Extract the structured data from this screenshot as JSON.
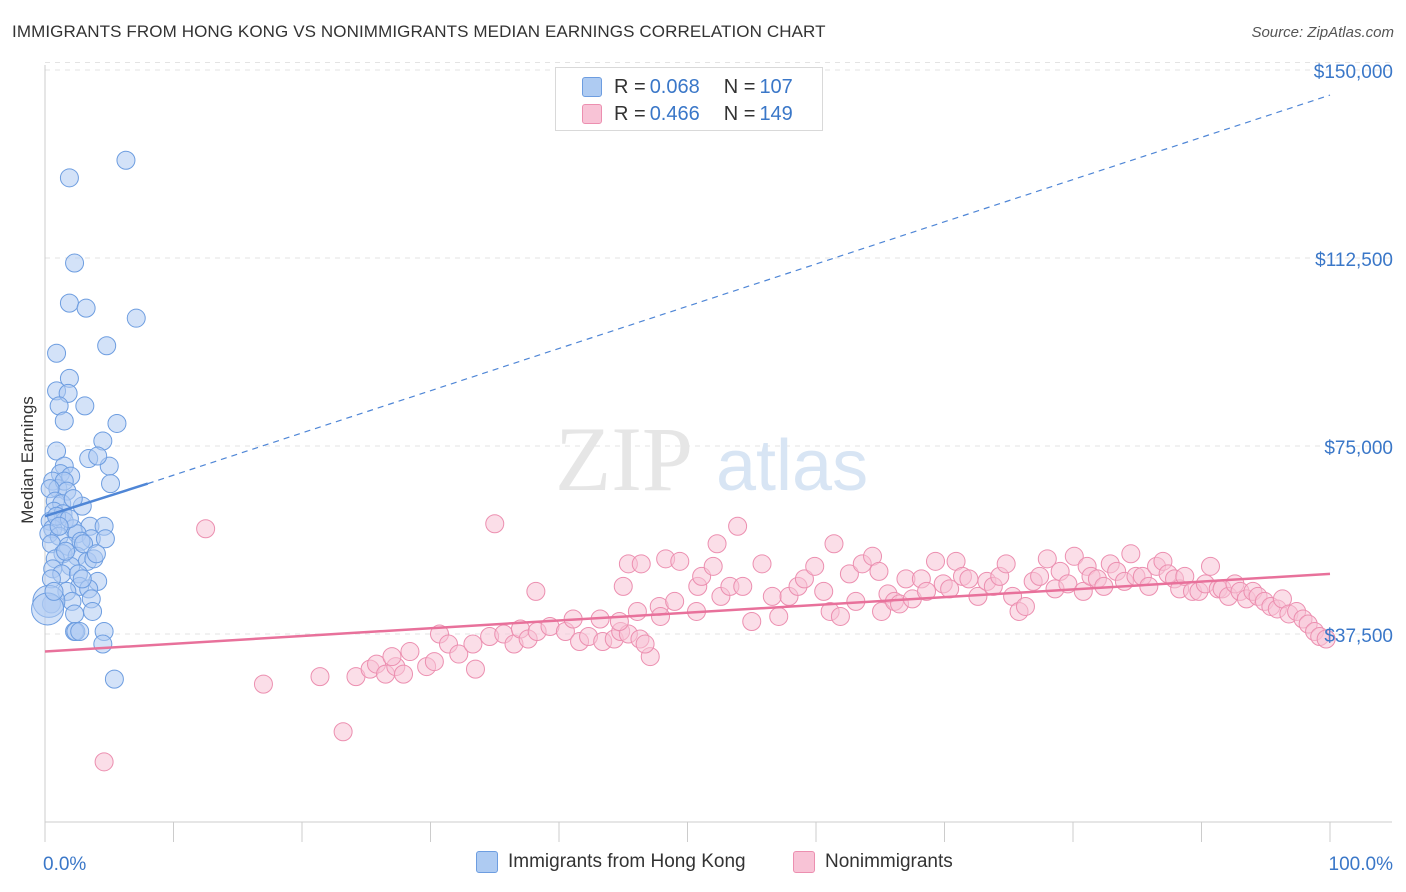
{
  "title": "IMMIGRANTS FROM HONG KONG VS NONIMMIGRANTS MEDIAN EARNINGS CORRELATION CHART",
  "source": "Source: ZipAtlas.com",
  "watermark": {
    "zip": "ZIP",
    "atlas": "atlas"
  },
  "legend": {
    "r_label": "R =",
    "n_label": "N =",
    "rows": [
      {
        "r": "0.068",
        "n": "107",
        "fill": "#aecbf2",
        "stroke": "#6d9de0"
      },
      {
        "r": "0.466",
        "n": "149",
        "fill": "#f8c3d6",
        "stroke": "#ec8fb0"
      }
    ]
  },
  "chart_data": {
    "type": "scatter",
    "title": "IMMIGRANTS FROM HONG KONG VS NONIMMIGRANTS MEDIAN EARNINGS CORRELATION CHART",
    "ylabel": "Median Earnings",
    "xlabel": "",
    "xlim": [
      0,
      100
    ],
    "ylim": [
      0,
      153000
    ],
    "x_tick_labels": [
      "0.0%",
      "100.0%"
    ],
    "y_ticks": [
      37500,
      75000,
      112500,
      150000
    ],
    "y_tick_labels": [
      "$37,500",
      "$75,000",
      "$112,500",
      "$150,000"
    ],
    "grid": "horizontal dashed",
    "legend_position": "top-center and bottom",
    "colors": {
      "blue": "#4f86d6",
      "blue_fill": "#aecbf2",
      "pink": "#e8719b",
      "pink_fill": "#f8c3d6",
      "axis_text": "#3a77c8"
    },
    "series": [
      {
        "name": "Immigrants from Hong Kong",
        "r": 0.068,
        "n": 107,
        "trend": {
          "x0": 0,
          "y0": 61000,
          "x1_solid": 8,
          "y1_solid": 67500,
          "x1": 100,
          "y1": 145000
        },
        "points": [
          [
            6.3,
            132000
          ],
          [
            1.9,
            128500
          ],
          [
            2.3,
            111500
          ],
          [
            1.9,
            103500
          ],
          [
            3.2,
            102500
          ],
          [
            7.1,
            100500
          ],
          [
            0.9,
            93500
          ],
          [
            4.8,
            95000
          ],
          [
            1.9,
            88500
          ],
          [
            0.9,
            86000
          ],
          [
            1.8,
            85500
          ],
          [
            1.1,
            83000
          ],
          [
            3.1,
            83000
          ],
          [
            1.5,
            80000
          ],
          [
            5.6,
            79500
          ],
          [
            4.5,
            76000
          ],
          [
            0.9,
            74000
          ],
          [
            3.4,
            72500
          ],
          [
            1.5,
            71000
          ],
          [
            5.0,
            71000
          ],
          [
            4.1,
            73000
          ],
          [
            1.2,
            69500
          ],
          [
            0.6,
            68000
          ],
          [
            2.0,
            69000
          ],
          [
            1.0,
            66500
          ],
          [
            1.5,
            68000
          ],
          [
            1.7,
            66000
          ],
          [
            5.1,
            67500
          ],
          [
            0.4,
            66500
          ],
          [
            0.8,
            64000
          ],
          [
            1.3,
            63500
          ],
          [
            2.9,
            63000
          ],
          [
            0.7,
            62000
          ],
          [
            1.4,
            61500
          ],
          [
            0.4,
            60000
          ],
          [
            1.5,
            60000
          ],
          [
            0.6,
            58500
          ],
          [
            2.2,
            58500
          ],
          [
            3.5,
            59000
          ],
          [
            4.6,
            59000
          ],
          [
            0.3,
            57500
          ],
          [
            1.1,
            57000
          ],
          [
            2.5,
            57500
          ],
          [
            3.6,
            56500
          ],
          [
            4.7,
            56500
          ],
          [
            0.5,
            55500
          ],
          [
            1.8,
            55000
          ],
          [
            2.8,
            56000
          ],
          [
            1.4,
            53500
          ],
          [
            2.5,
            53000
          ],
          [
            3.3,
            52000
          ],
          [
            0.8,
            52500
          ],
          [
            2.0,
            51000
          ],
          [
            3.8,
            52500
          ],
          [
            0.6,
            50500
          ],
          [
            1.3,
            49500
          ],
          [
            2.6,
            49500
          ],
          [
            4.1,
            48000
          ],
          [
            0.5,
            48500
          ],
          [
            2.7,
            47000
          ],
          [
            3.4,
            46500
          ],
          [
            1.7,
            46000
          ],
          [
            3.6,
            44500
          ],
          [
            2.1,
            44000
          ],
          [
            2.3,
            41500
          ],
          [
            3.7,
            42000
          ],
          [
            0.5,
            43500
          ],
          [
            2.3,
            38000
          ],
          [
            2.4,
            38000
          ],
          [
            2.7,
            38000
          ],
          [
            4.6,
            38000
          ],
          [
            4.5,
            35500
          ],
          [
            5.4,
            28500
          ],
          [
            0.3,
            44000
          ],
          [
            0.2,
            42500
          ],
          [
            1.6,
            54000
          ],
          [
            3.0,
            55500
          ],
          [
            0.9,
            61000
          ],
          [
            2.2,
            64500
          ],
          [
            1.9,
            60500
          ],
          [
            1.1,
            59000
          ],
          [
            4.0,
            53500
          ],
          [
            2.9,
            48500
          ],
          [
            0.7,
            46000
          ]
        ]
      },
      {
        "name": "Nonimmigrants",
        "r": 0.466,
        "n": 149,
        "trend": {
          "x0": 0,
          "y0": 34000,
          "x1": 100,
          "y1": 49500
        },
        "points": [
          [
            12.5,
            58500
          ],
          [
            4.6,
            12000
          ],
          [
            17.0,
            27500
          ],
          [
            21.4,
            29000
          ],
          [
            23.2,
            18000
          ],
          [
            24.2,
            29000
          ],
          [
            25.3,
            30500
          ],
          [
            25.8,
            31500
          ],
          [
            26.5,
            29500
          ],
          [
            27.3,
            31000
          ],
          [
            27.9,
            29500
          ],
          [
            27.0,
            33000
          ],
          [
            28.4,
            34000
          ],
          [
            29.7,
            31000
          ],
          [
            30.3,
            32000
          ],
          [
            30.7,
            37500
          ],
          [
            31.4,
            35500
          ],
          [
            32.2,
            33500
          ],
          [
            33.3,
            35500
          ],
          [
            34.6,
            37000
          ],
          [
            35.7,
            37500
          ],
          [
            36.5,
            35500
          ],
          [
            37.0,
            38500
          ],
          [
            37.6,
            36500
          ],
          [
            38.3,
            38000
          ],
          [
            39.3,
            39000
          ],
          [
            40.5,
            38000
          ],
          [
            41.6,
            36000
          ],
          [
            42.3,
            37000
          ],
          [
            43.4,
            36000
          ],
          [
            44.3,
            36500
          ],
          [
            44.8,
            38000
          ],
          [
            45.4,
            37500
          ],
          [
            46.3,
            36500
          ],
          [
            47.1,
            33000
          ],
          [
            46.7,
            35500
          ],
          [
            35.0,
            59500
          ],
          [
            38.2,
            46000
          ],
          [
            43.2,
            40500
          ],
          [
            44.7,
            40000
          ],
          [
            45.4,
            51500
          ],
          [
            45.0,
            47000
          ],
          [
            46.1,
            42000
          ],
          [
            46.4,
            51500
          ],
          [
            47.8,
            43000
          ],
          [
            48.3,
            52500
          ],
          [
            47.9,
            41000
          ],
          [
            49.0,
            44000
          ],
          [
            49.4,
            52000
          ],
          [
            50.7,
            42000
          ],
          [
            50.8,
            47000
          ],
          [
            51.1,
            49000
          ],
          [
            52.0,
            51000
          ],
          [
            52.3,
            55500
          ],
          [
            52.6,
            45000
          ],
          [
            53.3,
            47000
          ],
          [
            53.9,
            59000
          ],
          [
            54.3,
            47000
          ],
          [
            55.0,
            40000
          ],
          [
            55.8,
            51500
          ],
          [
            56.6,
            45000
          ],
          [
            57.1,
            41000
          ],
          [
            57.9,
            45000
          ],
          [
            58.6,
            47000
          ],
          [
            59.1,
            48500
          ],
          [
            59.9,
            51000
          ],
          [
            60.6,
            46000
          ],
          [
            61.1,
            42000
          ],
          [
            61.4,
            55500
          ],
          [
            61.9,
            41000
          ],
          [
            62.6,
            49500
          ],
          [
            63.1,
            44000
          ],
          [
            63.6,
            51500
          ],
          [
            64.4,
            53000
          ],
          [
            64.9,
            50000
          ],
          [
            65.1,
            42000
          ],
          [
            65.6,
            45500
          ],
          [
            66.1,
            44000
          ],
          [
            66.5,
            43500
          ],
          [
            67.0,
            48500
          ],
          [
            67.5,
            44500
          ],
          [
            68.2,
            48500
          ],
          [
            68.6,
            46000
          ],
          [
            69.3,
            52000
          ],
          [
            69.9,
            47500
          ],
          [
            70.4,
            46500
          ],
          [
            70.9,
            52000
          ],
          [
            71.4,
            49000
          ],
          [
            71.9,
            48500
          ],
          [
            72.6,
            45000
          ],
          [
            73.3,
            48000
          ],
          [
            73.8,
            47000
          ],
          [
            74.3,
            49000
          ],
          [
            74.8,
            51500
          ],
          [
            75.3,
            45000
          ],
          [
            75.8,
            42000
          ],
          [
            76.3,
            43000
          ],
          [
            76.9,
            48000
          ],
          [
            77.4,
            49000
          ],
          [
            78.0,
            52500
          ],
          [
            78.6,
            46500
          ],
          [
            79.0,
            50000
          ],
          [
            79.6,
            47500
          ],
          [
            80.1,
            53000
          ],
          [
            80.8,
            46000
          ],
          [
            81.1,
            51000
          ],
          [
            81.4,
            49000
          ],
          [
            81.9,
            48500
          ],
          [
            82.4,
            47000
          ],
          [
            82.9,
            51500
          ],
          [
            83.4,
            50000
          ],
          [
            84.0,
            48000
          ],
          [
            84.5,
            53500
          ],
          [
            84.9,
            49000
          ],
          [
            85.4,
            49000
          ],
          [
            85.9,
            47000
          ],
          [
            86.5,
            51000
          ],
          [
            87.0,
            52000
          ],
          [
            87.4,
            49500
          ],
          [
            87.9,
            48500
          ],
          [
            88.3,
            46500
          ],
          [
            88.7,
            49000
          ],
          [
            89.3,
            46000
          ],
          [
            89.8,
            46000
          ],
          [
            90.3,
            47500
          ],
          [
            90.7,
            51000
          ],
          [
            91.3,
            46500
          ],
          [
            91.6,
            46500
          ],
          [
            92.1,
            45000
          ],
          [
            92.6,
            47500
          ],
          [
            93.0,
            46000
          ],
          [
            93.5,
            44500
          ],
          [
            94.0,
            46000
          ],
          [
            94.4,
            45000
          ],
          [
            94.9,
            44000
          ],
          [
            95.4,
            43000
          ],
          [
            95.9,
            42500
          ],
          [
            96.3,
            44500
          ],
          [
            96.8,
            41500
          ],
          [
            97.4,
            42000
          ],
          [
            97.9,
            40500
          ],
          [
            98.3,
            39500
          ],
          [
            98.8,
            38000
          ],
          [
            99.2,
            37000
          ],
          [
            99.7,
            36500
          ],
          [
            41.1,
            40500
          ],
          [
            33.5,
            30500
          ]
        ]
      }
    ]
  },
  "bottom_legend": [
    {
      "label": "Immigrants from Hong Kong",
      "fill": "#aecbf2",
      "stroke": "#6d9de0"
    },
    {
      "label": "Nonimmigrants",
      "fill": "#f8c3d6",
      "stroke": "#ec8fb0"
    }
  ]
}
